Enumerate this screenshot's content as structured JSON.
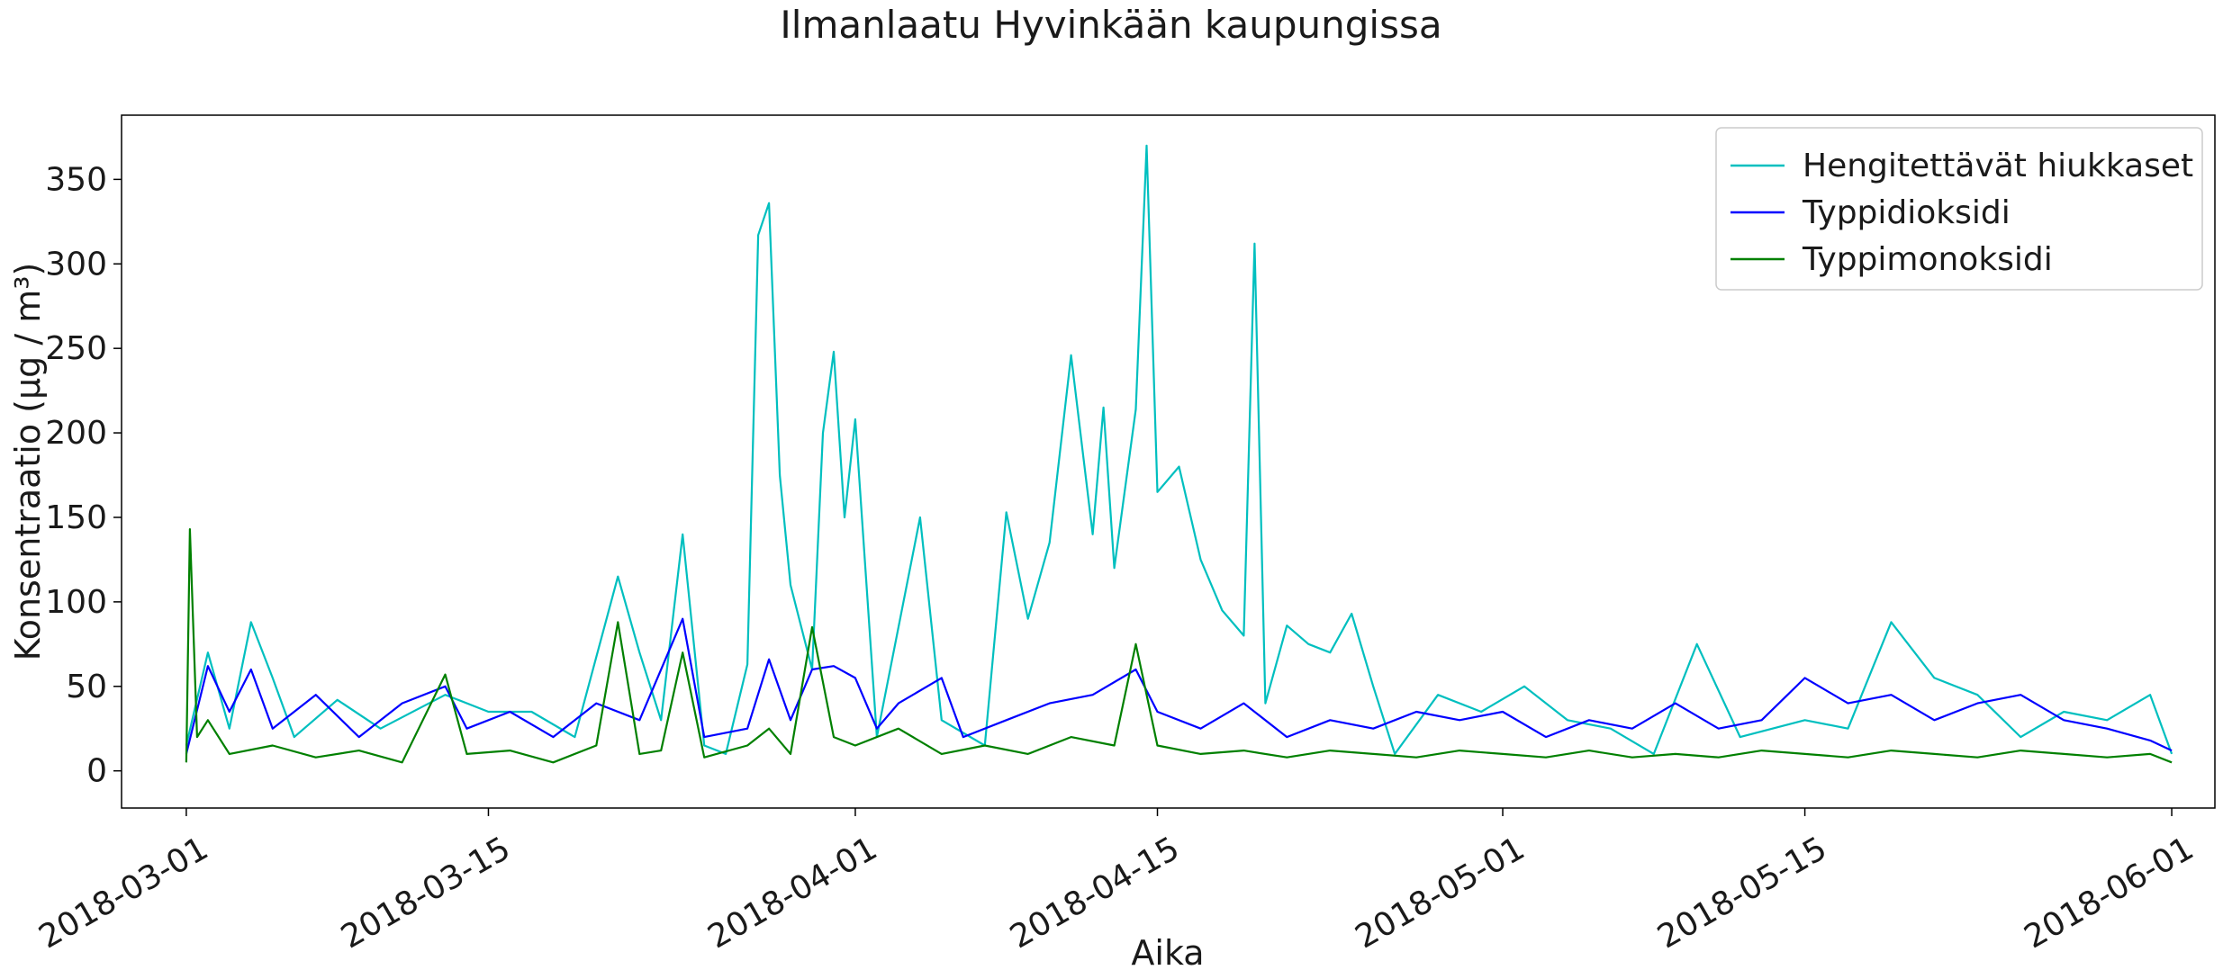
{
  "chart_data": {
    "type": "line",
    "title": "Ilmanlaatu Hyvinkään kaupungissa",
    "xlabel": "Aika",
    "ylabel": "Konsentraatio (µg / m³)",
    "x_range": [
      "2018-02-26",
      "2018-06-03"
    ],
    "ylim": [
      -22,
      388
    ],
    "x_ticks": [
      "2018-03-01",
      "2018-03-15",
      "2018-04-01",
      "2018-04-15",
      "2018-05-01",
      "2018-05-15",
      "2018-06-01"
    ],
    "y_ticks": [
      0,
      50,
      100,
      150,
      200,
      250,
      300,
      350
    ],
    "grid": false,
    "legend_position": "top-right",
    "series": [
      {
        "name": "Hengitettävät hiukkaset",
        "color": "#00bfbf",
        "points": [
          [
            "2018-03-01",
            15
          ],
          [
            "2018-03-02",
            70
          ],
          [
            "2018-03-03",
            25
          ],
          [
            "2018-03-04",
            88
          ],
          [
            "2018-03-05",
            55
          ],
          [
            "2018-03-06",
            20
          ],
          [
            "2018-03-08",
            42
          ],
          [
            "2018-03-10",
            25
          ],
          [
            "2018-03-13",
            45
          ],
          [
            "2018-03-15",
            35
          ],
          [
            "2018-03-17",
            35
          ],
          [
            "2018-03-19",
            20
          ],
          [
            "2018-03-21",
            115
          ],
          [
            "2018-03-22",
            70
          ],
          [
            "2018-03-23",
            30
          ],
          [
            "2018-03-24",
            140
          ],
          [
            "2018-03-25",
            15
          ],
          [
            "2018-03-26",
            10
          ],
          [
            "2018-03-27",
            63
          ],
          [
            "2018-03-27T12",
            317
          ],
          [
            "2018-03-28",
            336
          ],
          [
            "2018-03-28T12",
            175
          ],
          [
            "2018-03-29",
            110
          ],
          [
            "2018-03-30",
            60
          ],
          [
            "2018-03-30T12",
            200
          ],
          [
            "2018-03-31",
            248
          ],
          [
            "2018-03-31T12",
            150
          ],
          [
            "2018-04-01",
            208
          ],
          [
            "2018-04-02",
            20
          ],
          [
            "2018-04-04",
            150
          ],
          [
            "2018-04-05",
            30
          ],
          [
            "2018-04-07",
            15
          ],
          [
            "2018-04-08",
            153
          ],
          [
            "2018-04-09",
            90
          ],
          [
            "2018-04-10",
            135
          ],
          [
            "2018-04-11",
            246
          ],
          [
            "2018-04-12",
            140
          ],
          [
            "2018-04-12T12",
            215
          ],
          [
            "2018-04-13",
            120
          ],
          [
            "2018-04-14",
            214
          ],
          [
            "2018-04-14T12",
            370
          ],
          [
            "2018-04-15",
            165
          ],
          [
            "2018-04-16",
            180
          ],
          [
            "2018-04-17",
            125
          ],
          [
            "2018-04-18",
            95
          ],
          [
            "2018-04-19",
            80
          ],
          [
            "2018-04-19T12",
            312
          ],
          [
            "2018-04-20",
            40
          ],
          [
            "2018-04-21",
            86
          ],
          [
            "2018-04-22",
            75
          ],
          [
            "2018-04-23",
            70
          ],
          [
            "2018-04-24",
            93
          ],
          [
            "2018-04-25",
            50
          ],
          [
            "2018-04-26",
            10
          ],
          [
            "2018-04-28",
            45
          ],
          [
            "2018-04-30",
            35
          ],
          [
            "2018-05-02",
            50
          ],
          [
            "2018-05-04",
            30
          ],
          [
            "2018-05-06",
            25
          ],
          [
            "2018-05-08",
            10
          ],
          [
            "2018-05-10",
            75
          ],
          [
            "2018-05-12",
            20
          ],
          [
            "2018-05-15",
            30
          ],
          [
            "2018-05-17",
            25
          ],
          [
            "2018-05-19",
            88
          ],
          [
            "2018-05-21",
            55
          ],
          [
            "2018-05-23",
            45
          ],
          [
            "2018-05-25",
            20
          ],
          [
            "2018-05-27",
            35
          ],
          [
            "2018-05-29",
            30
          ],
          [
            "2018-05-31",
            45
          ],
          [
            "2018-06-01",
            10
          ]
        ]
      },
      {
        "name": "Typpidioksidi",
        "color": "#0000ff",
        "points": [
          [
            "2018-03-01",
            10
          ],
          [
            "2018-03-02",
            62
          ],
          [
            "2018-03-03",
            35
          ],
          [
            "2018-03-04",
            60
          ],
          [
            "2018-03-05",
            25
          ],
          [
            "2018-03-07",
            45
          ],
          [
            "2018-03-09",
            20
          ],
          [
            "2018-03-11",
            40
          ],
          [
            "2018-03-13",
            50
          ],
          [
            "2018-03-14",
            25
          ],
          [
            "2018-03-16",
            35
          ],
          [
            "2018-03-18",
            20
          ],
          [
            "2018-03-20",
            40
          ],
          [
            "2018-03-22",
            30
          ],
          [
            "2018-03-24",
            90
          ],
          [
            "2018-03-25",
            20
          ],
          [
            "2018-03-27",
            25
          ],
          [
            "2018-03-28",
            66
          ],
          [
            "2018-03-29",
            30
          ],
          [
            "2018-03-30",
            60
          ],
          [
            "2018-03-31",
            62
          ],
          [
            "2018-04-01",
            55
          ],
          [
            "2018-04-02",
            25
          ],
          [
            "2018-04-03",
            40
          ],
          [
            "2018-04-05",
            55
          ],
          [
            "2018-04-06",
            20
          ],
          [
            "2018-04-08",
            30
          ],
          [
            "2018-04-10",
            40
          ],
          [
            "2018-04-12",
            45
          ],
          [
            "2018-04-14",
            60
          ],
          [
            "2018-04-15",
            35
          ],
          [
            "2018-04-17",
            25
          ],
          [
            "2018-04-19",
            40
          ],
          [
            "2018-04-21",
            20
          ],
          [
            "2018-04-23",
            30
          ],
          [
            "2018-04-25",
            25
          ],
          [
            "2018-04-27",
            35
          ],
          [
            "2018-04-29",
            30
          ],
          [
            "2018-05-01",
            35
          ],
          [
            "2018-05-03",
            20
          ],
          [
            "2018-05-05",
            30
          ],
          [
            "2018-05-07",
            25
          ],
          [
            "2018-05-09",
            40
          ],
          [
            "2018-05-11",
            25
          ],
          [
            "2018-05-13",
            30
          ],
          [
            "2018-05-15",
            55
          ],
          [
            "2018-05-17",
            40
          ],
          [
            "2018-05-19",
            45
          ],
          [
            "2018-05-21",
            30
          ],
          [
            "2018-05-23",
            40
          ],
          [
            "2018-05-25",
            45
          ],
          [
            "2018-05-27",
            30
          ],
          [
            "2018-05-29",
            25
          ],
          [
            "2018-05-31",
            18
          ],
          [
            "2018-06-01",
            12
          ]
        ]
      },
      {
        "name": "Typpimonoksidi",
        "color": "#008000",
        "points": [
          [
            "2018-03-01",
            5
          ],
          [
            "2018-03-01T04",
            143
          ],
          [
            "2018-03-01T12",
            20
          ],
          [
            "2018-03-02",
            30
          ],
          [
            "2018-03-03",
            10
          ],
          [
            "2018-03-05",
            15
          ],
          [
            "2018-03-07",
            8
          ],
          [
            "2018-03-09",
            12
          ],
          [
            "2018-03-11",
            5
          ],
          [
            "2018-03-13",
            57
          ],
          [
            "2018-03-14",
            10
          ],
          [
            "2018-03-16",
            12
          ],
          [
            "2018-03-18",
            5
          ],
          [
            "2018-03-20",
            15
          ],
          [
            "2018-03-21",
            88
          ],
          [
            "2018-03-22",
            10
          ],
          [
            "2018-03-23",
            12
          ],
          [
            "2018-03-24",
            70
          ],
          [
            "2018-03-25",
            8
          ],
          [
            "2018-03-27",
            15
          ],
          [
            "2018-03-28",
            25
          ],
          [
            "2018-03-29",
            10
          ],
          [
            "2018-03-30",
            85
          ],
          [
            "2018-03-31",
            20
          ],
          [
            "2018-04-01",
            15
          ],
          [
            "2018-04-03",
            25
          ],
          [
            "2018-04-05",
            10
          ],
          [
            "2018-04-07",
            15
          ],
          [
            "2018-04-09",
            10
          ],
          [
            "2018-04-11",
            20
          ],
          [
            "2018-04-13",
            15
          ],
          [
            "2018-04-14",
            75
          ],
          [
            "2018-04-15",
            15
          ],
          [
            "2018-04-17",
            10
          ],
          [
            "2018-04-19",
            12
          ],
          [
            "2018-04-21",
            8
          ],
          [
            "2018-04-23",
            12
          ],
          [
            "2018-04-25",
            10
          ],
          [
            "2018-04-27",
            8
          ],
          [
            "2018-04-29",
            12
          ],
          [
            "2018-05-01",
            10
          ],
          [
            "2018-05-03",
            8
          ],
          [
            "2018-05-05",
            12
          ],
          [
            "2018-05-07",
            8
          ],
          [
            "2018-05-09",
            10
          ],
          [
            "2018-05-11",
            8
          ],
          [
            "2018-05-13",
            12
          ],
          [
            "2018-05-15",
            10
          ],
          [
            "2018-05-17",
            8
          ],
          [
            "2018-05-19",
            12
          ],
          [
            "2018-05-21",
            10
          ],
          [
            "2018-05-23",
            8
          ],
          [
            "2018-05-25",
            12
          ],
          [
            "2018-05-27",
            10
          ],
          [
            "2018-05-29",
            8
          ],
          [
            "2018-05-31",
            10
          ],
          [
            "2018-06-01",
            5
          ]
        ]
      }
    ]
  }
}
